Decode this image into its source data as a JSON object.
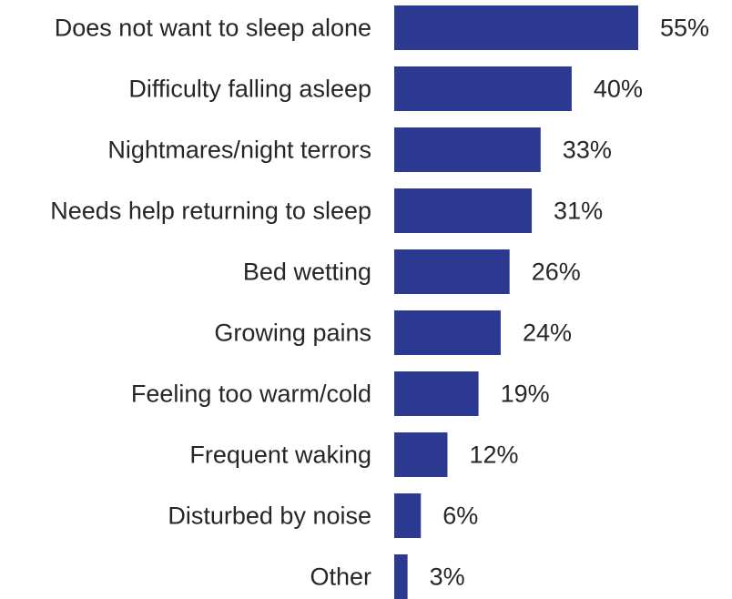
{
  "chart_data": {
    "type": "bar",
    "orientation": "horizontal",
    "categories": [
      "Does not want to sleep alone",
      "Difficulty falling asleep",
      "Nightmares/night terrors",
      "Needs help returning to sleep",
      "Bed wetting",
      "Growing pains",
      "Feeling too warm/cold",
      "Frequent waking",
      "Disturbed by noise",
      "Other"
    ],
    "values": [
      55,
      40,
      33,
      31,
      26,
      24,
      19,
      12,
      6,
      3
    ],
    "value_labels": [
      "55%",
      "40%",
      "33%",
      "31%",
      "26%",
      "24%",
      "19%",
      "12%",
      "6%",
      "3%"
    ],
    "unit": "%",
    "xlim": [
      0,
      55
    ],
    "grid": false,
    "legend": "none",
    "colors": {
      "bar": "#2b3990",
      "text": "#262626"
    }
  }
}
